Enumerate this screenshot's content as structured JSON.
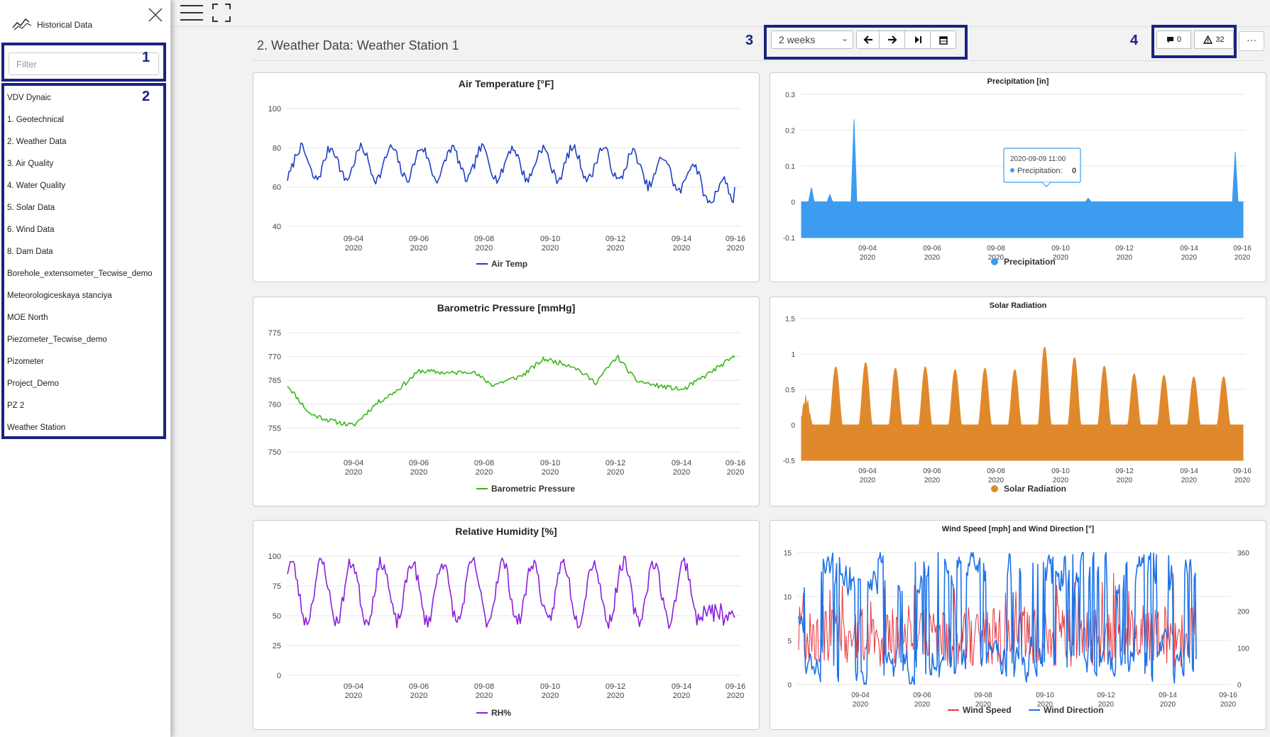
{
  "sidebar": {
    "title": "Historical Data",
    "filter_placeholder": "Filter",
    "callout_filter": "1",
    "callout_nav": "2",
    "items": [
      "VDV Dynaic",
      "1. Geotechnical",
      "2. Weather Data",
      "3. Air Quality",
      "4. Water Quality",
      "5. Solar Data",
      "6. Wind Data",
      "8. Dam Data",
      "Borehole_extensometer_Tecwise_demo",
      "Meteorologiceskaya stanciya",
      "MOE North",
      "Piezometer_Tecwise_demo",
      "Pizometer",
      "Project_Demo",
      "PZ 2",
      "Weather Station"
    ]
  },
  "header": {
    "title": "2. Weather Data: Weather Station 1",
    "callout_period": "3",
    "callout_alerts": "4",
    "period": "2 weeks",
    "comments_count": "0",
    "alerts_count": "32",
    "more_label": "···"
  },
  "x_axis": {
    "ticks": [
      "09-04",
      "09-06",
      "09-08",
      "09-10",
      "09-12",
      "09-14",
      "09-16"
    ],
    "year": "2020"
  },
  "chart_data": [
    {
      "id": "air-temp",
      "type": "line",
      "title": "Air Temperature [°F]",
      "series": [
        {
          "name": "Air Temp",
          "color": "#1f3fc4"
        }
      ],
      "yticks": [
        "100",
        "80",
        "60",
        "40"
      ],
      "ylim": [
        40,
        100
      ]
    },
    {
      "id": "precip",
      "type": "area",
      "title": "Precipitation [in]",
      "series": [
        {
          "name": "Precipitation",
          "color": "#3c9cf0"
        }
      ],
      "yticks": [
        "0.3",
        "0.2",
        "0.1",
        "0",
        "-0.1"
      ],
      "ylim": [
        -0.1,
        0.3
      ],
      "tooltip": {
        "date": "2020-09-09 11:00",
        "label": "Precipitation:",
        "value": "0"
      }
    },
    {
      "id": "pressure",
      "type": "line",
      "title": "Barometric Pressure [mmHg]",
      "series": [
        {
          "name": "Barometric Pressure",
          "color": "#3cb81c"
        }
      ],
      "yticks": [
        "775",
        "770",
        "765",
        "760",
        "755",
        "750"
      ],
      "ylim": [
        750,
        775
      ]
    },
    {
      "id": "solar",
      "type": "area",
      "title": "Solar Radiation",
      "series": [
        {
          "name": "Solar Radiation",
          "color": "#e0892c"
        }
      ],
      "yticks": [
        "1.5",
        "1",
        "0.5",
        "0",
        "-0.5"
      ],
      "ylim": [
        -0.5,
        1.5
      ]
    },
    {
      "id": "humidity",
      "type": "line",
      "title": "Relative Humidity [%]",
      "series": [
        {
          "name": "RH%",
          "color": "#8a1fe0"
        }
      ],
      "yticks": [
        "100",
        "75",
        "50",
        "25",
        "0"
      ],
      "ylim": [
        0,
        100
      ]
    },
    {
      "id": "wind",
      "type": "line",
      "title": "Wind Speed [mph] and Wind Direction [°]",
      "series": [
        {
          "name": "Wind Speed",
          "color": "#e8333a"
        },
        {
          "name": "Wind Direction",
          "color": "#1e73e8"
        }
      ],
      "yticks_left": [
        "15",
        "10",
        "5",
        "0"
      ],
      "yticks_right": [
        "360",
        "200",
        "100",
        "0"
      ],
      "ylim_left": [
        0,
        15
      ],
      "ylim_right": [
        0,
        360
      ]
    }
  ]
}
